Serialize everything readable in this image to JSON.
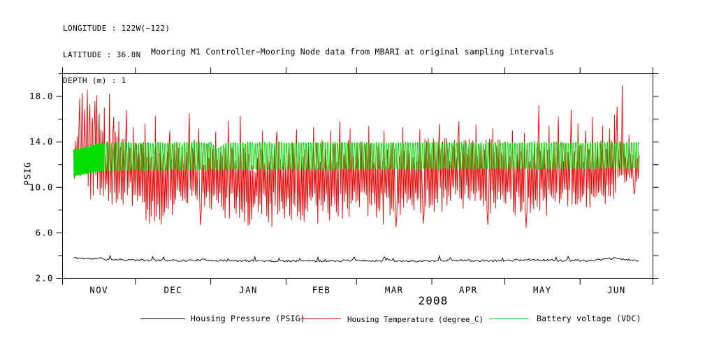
{
  "header": {
    "lines": [
      "LONGITUDE : 122W(−122)",
      "LATITUDE : 36.8N",
      "DEPTH (m) : 1"
    ]
  },
  "chart_data": {
    "type": "line",
    "title": "Mooring M1 Controller−Mooring Node data from MBARI at original sampling intervals",
    "ylabel": "PSIG",
    "xlabel_year": "2008",
    "ylim": [
      2,
      20
    ],
    "yticks_major": [
      2,
      6,
      10,
      14,
      18
    ],
    "yticks_minor": [
      4,
      8,
      12,
      16,
      20
    ],
    "ytick_label_format": "one_decimal",
    "grid": "off",
    "frame": "box_with_outward_ticks",
    "months": [
      {
        "label": "NOV",
        "days": 30
      },
      {
        "label": "DEC",
        "days": 31
      },
      {
        "label": "JAN",
        "days": 31
      },
      {
        "label": "FEB",
        "days": 29
      },
      {
        "label": "MAR",
        "days": 31
      },
      {
        "label": "APR",
        "days": 30
      },
      {
        "label": "MAY",
        "days": 31
      },
      {
        "label": "JUN",
        "days": 30
      }
    ],
    "data_start_day": 4.6,
    "data_end_day": 237.5,
    "axis_color": "#000000",
    "background_color": "#ffffff",
    "legend_position": "below",
    "series": [
      {
        "name": "Housing Pressure (PSIG)",
        "color": "#000000",
        "kind": "noisy_line",
        "seed": 11,
        "step_days": 0.5,
        "noise": 0.09,
        "spike_chance": 0.055,
        "spike_size": 0.28,
        "points": [
          [
            4.6,
            3.8
          ],
          [
            10,
            3.74
          ],
          [
            16,
            3.7
          ],
          [
            22,
            3.66
          ],
          [
            28,
            3.62
          ],
          [
            35,
            3.58
          ],
          [
            42,
            3.6
          ],
          [
            50,
            3.56
          ],
          [
            58,
            3.62
          ],
          [
            65,
            3.56
          ],
          [
            72,
            3.53
          ],
          [
            80,
            3.56
          ],
          [
            88,
            3.51
          ],
          [
            95,
            3.55
          ],
          [
            102,
            3.51
          ],
          [
            110,
            3.53
          ],
          [
            118,
            3.56
          ],
          [
            125,
            3.53
          ],
          [
            132,
            3.56
          ],
          [
            140,
            3.53
          ],
          [
            148,
            3.51
          ],
          [
            155,
            3.56
          ],
          [
            162,
            3.59
          ],
          [
            168,
            3.56
          ],
          [
            175,
            3.53
          ],
          [
            182,
            3.56
          ],
          [
            188,
            3.61
          ],
          [
            194,
            3.66
          ],
          [
            198,
            3.6
          ],
          [
            204,
            3.56
          ],
          [
            210,
            3.59
          ],
          [
            216,
            3.56
          ],
          [
            222,
            3.64
          ],
          [
            227,
            3.76
          ],
          [
            231,
            3.68
          ],
          [
            235,
            3.58
          ],
          [
            237.5,
            3.56
          ]
        ]
      },
      {
        "name": "Housing Temperature (degree_C)",
        "color": "#ee0000",
        "kind": "hash_band",
        "seed": 7,
        "step_days": 0.35,
        "dip_chance": 0.035,
        "envelope": [
          [
            4.6,
            11.0,
            14.3
          ],
          [
            6,
            9.8,
            15.3
          ],
          [
            8,
            9.3,
            15.8
          ],
          [
            12,
            9.2,
            15.8
          ],
          [
            16,
            8.9,
            15.2
          ],
          [
            20,
            8.7,
            14.9
          ],
          [
            24,
            8.5,
            14.9
          ],
          [
            28,
            8.2,
            14.7
          ],
          [
            32,
            7.5,
            14.3
          ],
          [
            36,
            6.7,
            13.9
          ],
          [
            40,
            6.6,
            13.7
          ],
          [
            44,
            7.1,
            13.9
          ],
          [
            48,
            7.5,
            14.1
          ],
          [
            52,
            7.5,
            14.4
          ],
          [
            56,
            7.6,
            14.1
          ],
          [
            61,
            7.8,
            14.0
          ],
          [
            65,
            7.4,
            14.2
          ],
          [
            70,
            7.0,
            14.1
          ],
          [
            74,
            6.8,
            14.2
          ],
          [
            77,
            6.3,
            13.5
          ],
          [
            80,
            6.8,
            13.8
          ],
          [
            84,
            7.3,
            14.1
          ],
          [
            88,
            7.2,
            14.2
          ],
          [
            92,
            7.0,
            14.2
          ],
          [
            96,
            6.8,
            14.1
          ],
          [
            100,
            7.0,
            14.2
          ],
          [
            104,
            7.2,
            14.4
          ],
          [
            108,
            7.0,
            14.3
          ],
          [
            112,
            6.9,
            14.4
          ],
          [
            116,
            7.2,
            14.2
          ],
          [
            121,
            7.3,
            14.1
          ],
          [
            126,
            7.2,
            14.2
          ],
          [
            131,
            7.4,
            14.1
          ],
          [
            136,
            7.3,
            14.2
          ],
          [
            141,
            7.5,
            14.3
          ],
          [
            146,
            7.4,
            14.2
          ],
          [
            152,
            7.6,
            14.4
          ],
          [
            157,
            7.8,
            14.6
          ],
          [
            162,
            8.0,
            14.8
          ],
          [
            167,
            7.9,
            14.6
          ],
          [
            172,
            7.7,
            14.4
          ],
          [
            177,
            7.6,
            14.3
          ],
          [
            182,
            7.4,
            14.2
          ],
          [
            187,
            7.2,
            14.1
          ],
          [
            192,
            7.5,
            14.2
          ],
          [
            197,
            8.0,
            14.4
          ],
          [
            202,
            7.6,
            14.3
          ],
          [
            207,
            7.8,
            14.4
          ],
          [
            213,
            7.9,
            14.3
          ],
          [
            218,
            8.0,
            14.4
          ],
          [
            223,
            8.2,
            14.3
          ],
          [
            228,
            9.2,
            14.6
          ],
          [
            232,
            10.2,
            14.0
          ],
          [
            236,
            10.3,
            13.6
          ],
          [
            237.5,
            10.6,
            13.4
          ]
        ],
        "spikes": [
          [
            7,
            17.8
          ],
          [
            8,
            18.3
          ],
          [
            9,
            16.9
          ],
          [
            10,
            18.6
          ],
          [
            11,
            17.3
          ],
          [
            12,
            16.1
          ],
          [
            13,
            17.6
          ],
          [
            14,
            18.1
          ],
          [
            15,
            16.5
          ],
          [
            17,
            17.0
          ],
          [
            19,
            18.2
          ],
          [
            21,
            16.2
          ],
          [
            23,
            15.8
          ],
          [
            26,
            16.8
          ],
          [
            29,
            15.3
          ],
          [
            34,
            15.6
          ],
          [
            38,
            16.3
          ],
          [
            44,
            15.0
          ],
          [
            52,
            16.5
          ],
          [
            56,
            15.2
          ],
          [
            63,
            14.9
          ],
          [
            68,
            15.9
          ],
          [
            73,
            16.3
          ],
          [
            82,
            15.0
          ],
          [
            88,
            14.9
          ],
          [
            96,
            15.1
          ],
          [
            103,
            15.3
          ],
          [
            110,
            15.0
          ],
          [
            114,
            15.8
          ],
          [
            118,
            15.2
          ],
          [
            126,
            15.4
          ],
          [
            132,
            15.0
          ],
          [
            140,
            15.3
          ],
          [
            147,
            15.1
          ],
          [
            155,
            15.6
          ],
          [
            163,
            15.8
          ],
          [
            170,
            15.5
          ],
          [
            177,
            15.2
          ],
          [
            185,
            15.0
          ],
          [
            190,
            14.8
          ],
          [
            196,
            17.2
          ],
          [
            200,
            15.4
          ],
          [
            204,
            16.2
          ],
          [
            209,
            16.8
          ],
          [
            212,
            15.6
          ],
          [
            215,
            15.0
          ],
          [
            218,
            16.2
          ],
          [
            222,
            15.4
          ],
          [
            225,
            15.2
          ],
          [
            227,
            16.4
          ],
          [
            228,
            17.1
          ],
          [
            230,
            18.95
          ],
          [
            233,
            14.6
          ]
        ]
      },
      {
        "name": "Battery voltage (VDC)",
        "color": "#00dd00",
        "kind": "square_wave",
        "seed": 3,
        "step_days": 0.25,
        "jitter": 0.09,
        "dense_until_day": 17,
        "dense_step_days": 0.08,
        "envelope": [
          [
            4.6,
            11.0,
            13.3
          ],
          [
            10,
            11.2,
            13.5
          ],
          [
            14,
            11.4,
            13.8
          ],
          [
            18,
            11.5,
            13.9
          ],
          [
            61,
            11.6,
            13.9
          ],
          [
            64,
            11.6,
            13.4
          ],
          [
            68,
            11.6,
            13.9
          ],
          [
            237.5,
            11.7,
            13.9
          ]
        ]
      }
    ]
  }
}
